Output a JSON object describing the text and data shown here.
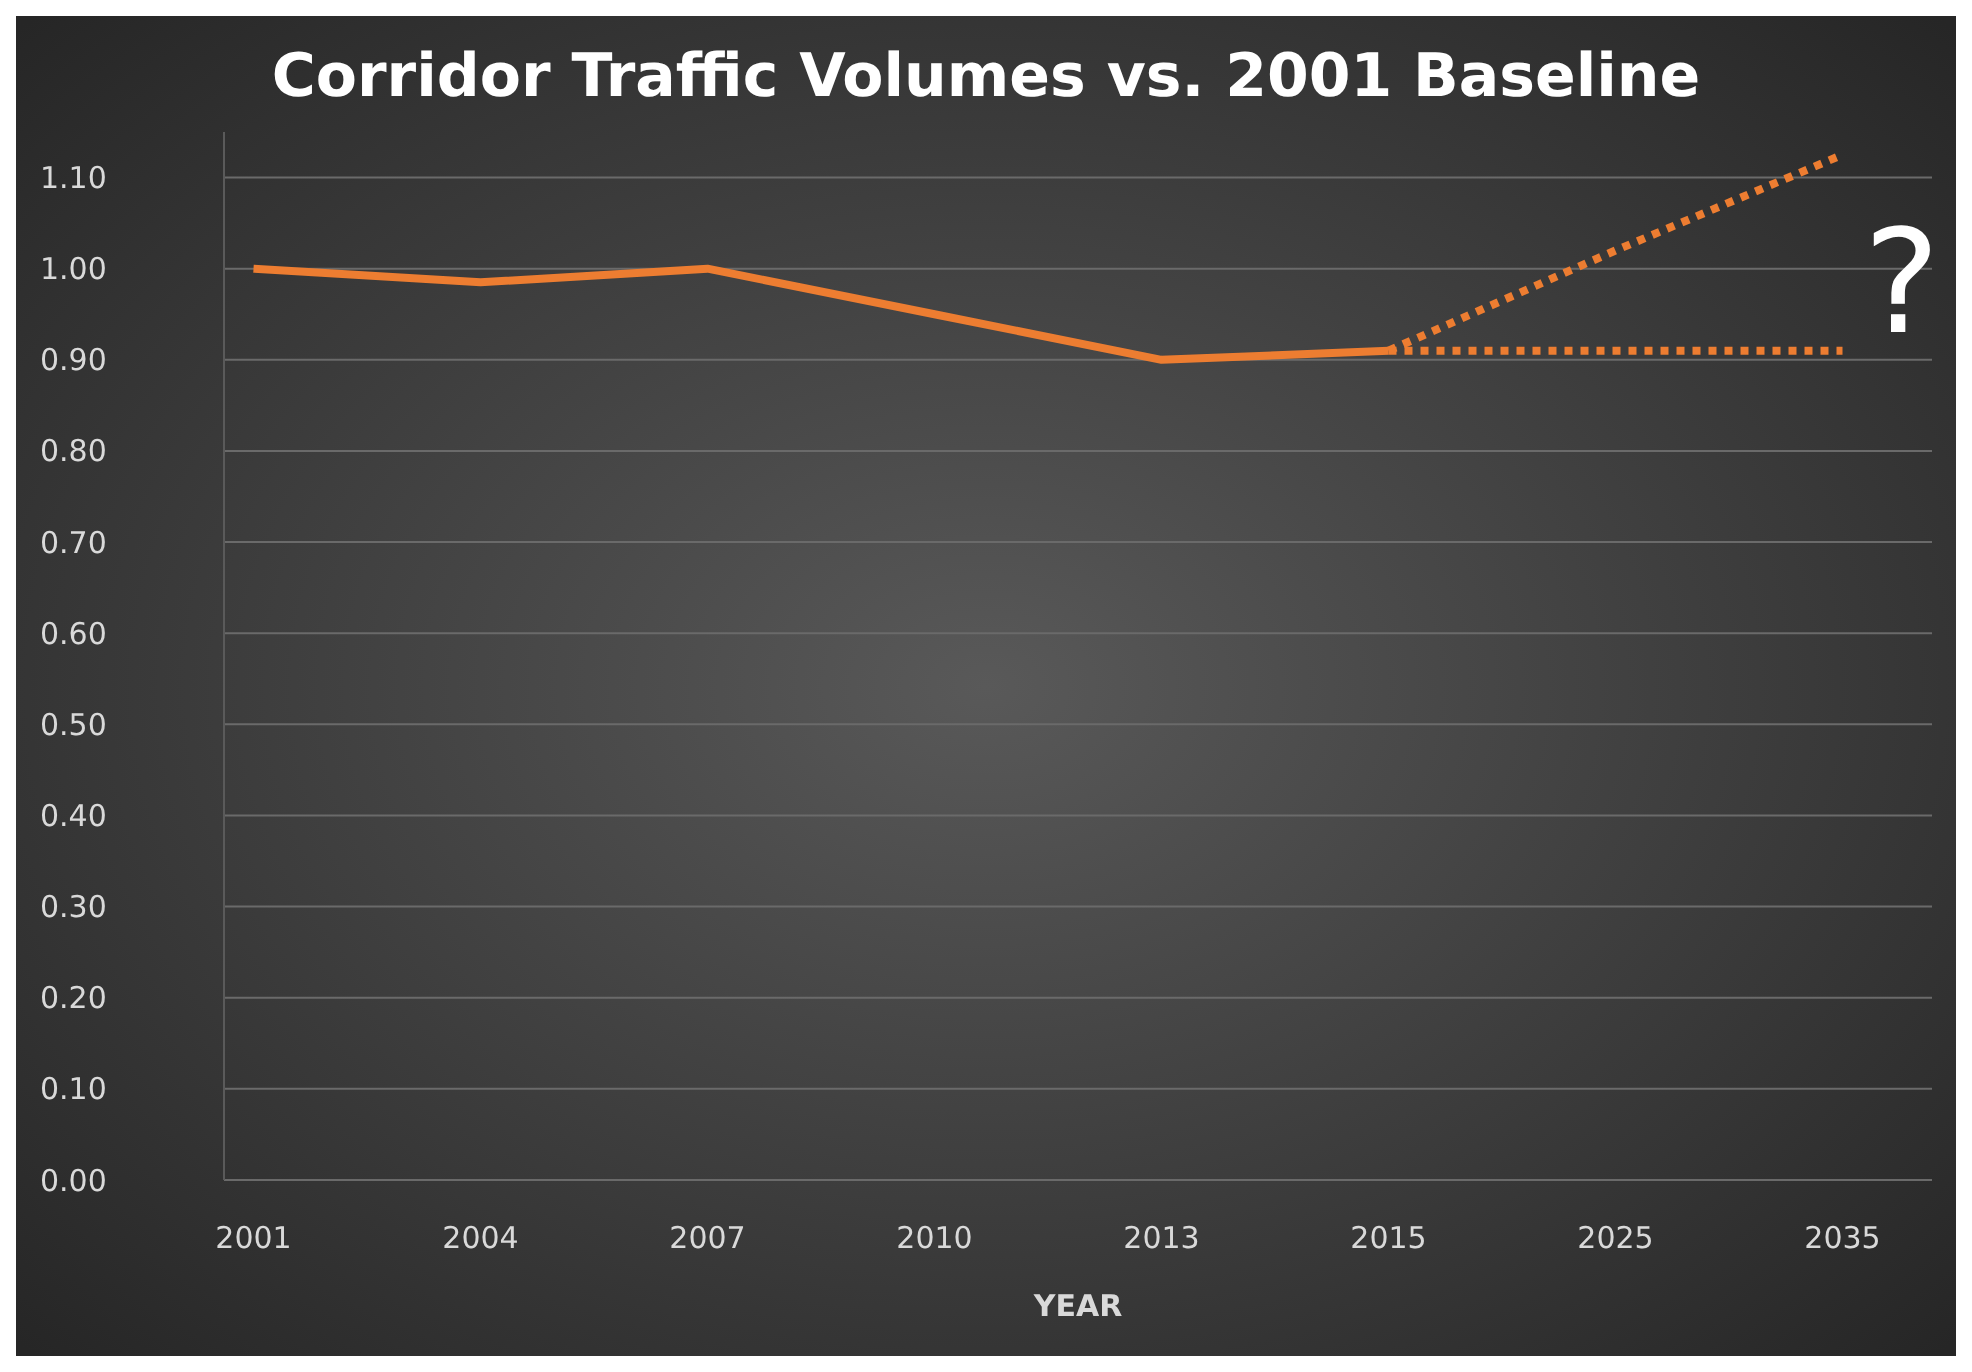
{
  "chart_data": {
    "type": "line",
    "title": "Corridor Traffic Volumes vs. 2001 Baseline",
    "xlabel": "YEAR",
    "categories": [
      "2001",
      "2004",
      "2007",
      "2010",
      "2013",
      "2015",
      "2025",
      "2035"
    ],
    "series": [
      {
        "color": "#ed7d31",
        "line_style": "solid",
        "values": [
          1.0,
          0.985,
          1.0,
          0.95,
          0.9,
          0.91,
          null,
          null
        ]
      },
      {
        "color": "#ed7d31",
        "line_style": "dotted",
        "values": [
          null,
          null,
          null,
          null,
          null,
          0.91,
          1.02,
          1.125
        ]
      },
      {
        "color": "#ed7d31",
        "line_style": "dotted",
        "values": [
          null,
          null,
          null,
          null,
          null,
          0.91,
          0.91,
          0.91
        ]
      }
    ],
    "ylim": [
      0,
      1.15
    ],
    "yticks": [
      {
        "value": 0,
        "label": "0.00"
      },
      {
        "value": 0.1,
        "label": "0.10"
      },
      {
        "value": 0.2,
        "label": "0.20"
      },
      {
        "value": 0.3,
        "label": "0.30"
      },
      {
        "value": 0.4,
        "label": "0.40"
      },
      {
        "value": 0.5,
        "label": "0.50"
      },
      {
        "value": 0.6,
        "label": "0.60"
      },
      {
        "value": 0.7,
        "label": "0.70"
      },
      {
        "value": 0.8,
        "label": "0.80"
      },
      {
        "value": 0.9,
        "label": "0.90"
      },
      {
        "value": 1.0,
        "label": "1.00"
      },
      {
        "value": 1.1,
        "label": "1.10"
      }
    ],
    "grid": "y",
    "marker": "none",
    "annotations": [
      "?"
    ]
  }
}
